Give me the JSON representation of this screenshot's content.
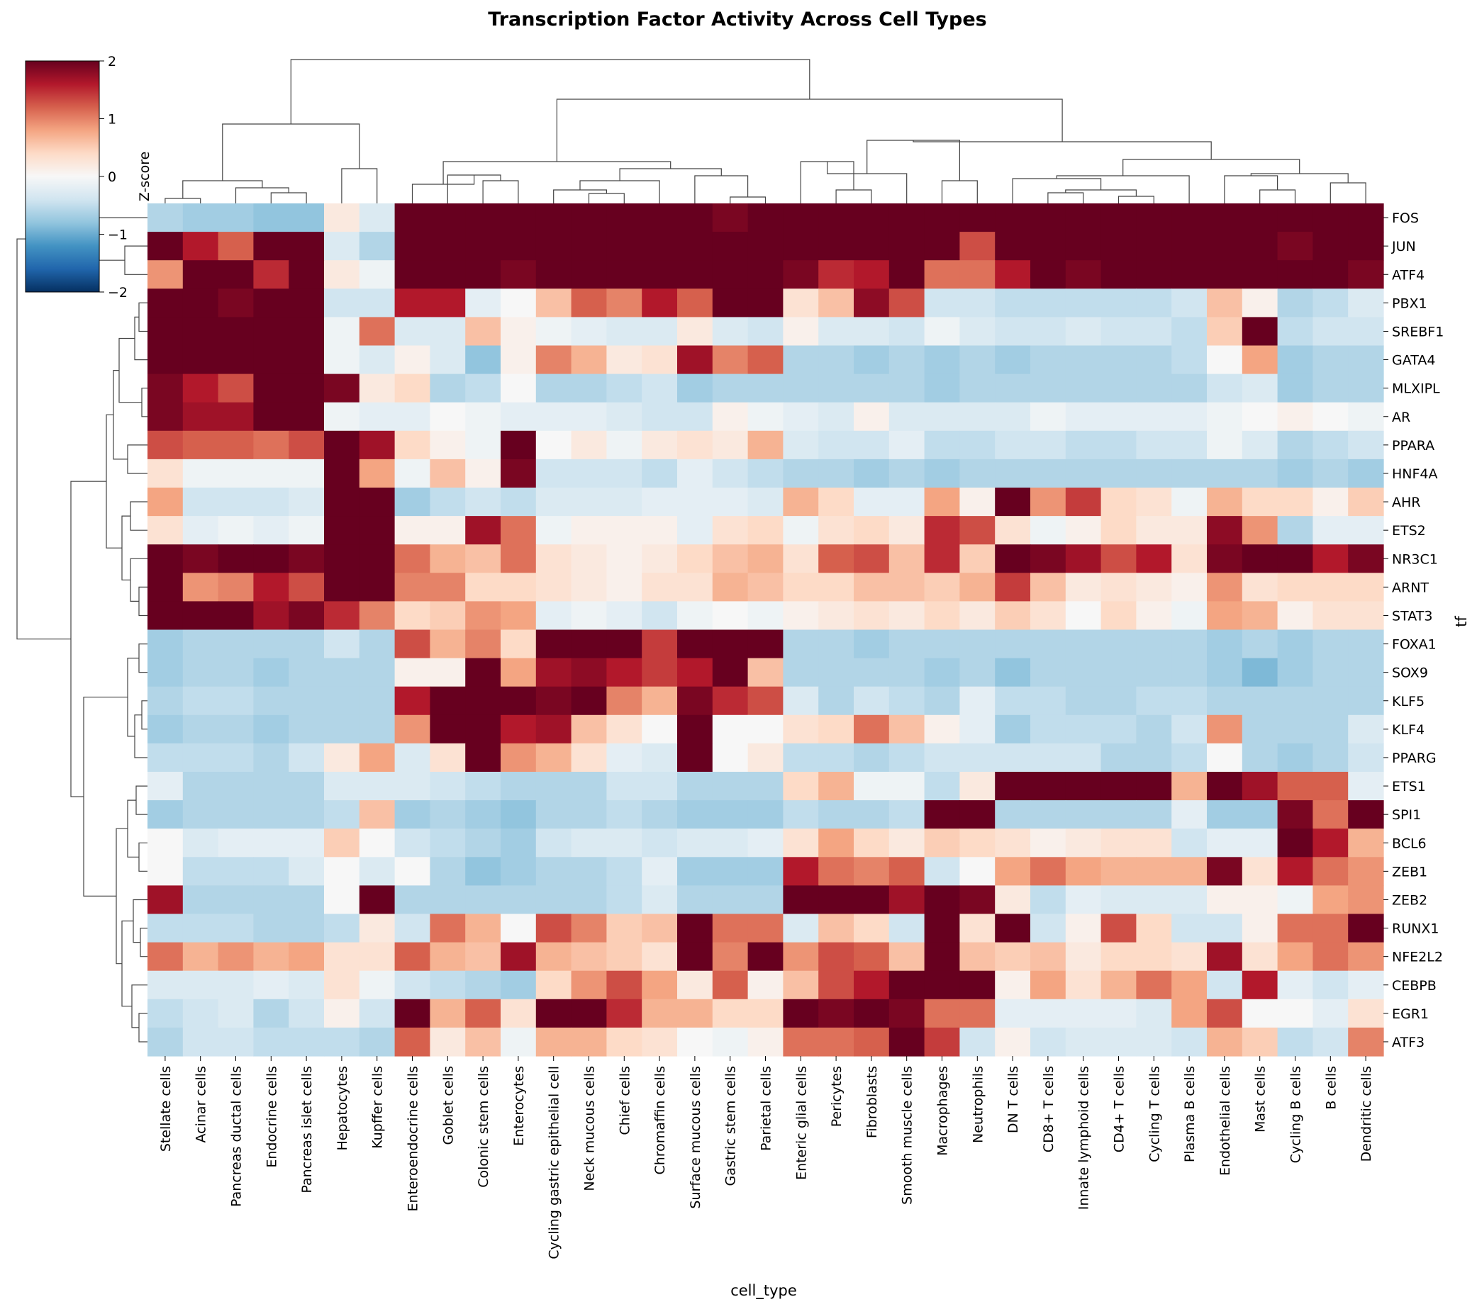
{
  "chart_data": {
    "type": "heatmap",
    "title": "Transcription Factor Activity Across Cell Types",
    "xlabel": "cell_type",
    "ylabel": "tf",
    "colorbar": {
      "label": "Z-score",
      "ticks": [
        2,
        1,
        0,
        -1,
        -2
      ],
      "tick_labels": [
        "2",
        "1",
        "0",
        "−1",
        "−2"
      ],
      "range": [
        -2,
        2
      ],
      "colormap": "RdBu_r",
      "placement": "top-left"
    },
    "clustering": {
      "rows": true,
      "columns": true
    },
    "columns": [
      "Stellate cells",
      "Acinar cells",
      "Pancreas ductal cells",
      "Endocrine cells",
      "Pancreas islet cells",
      "Hepatocytes",
      "Kupffer cells",
      "Enteroendocrine cells",
      "Goblet cells",
      "Colonic stem cells",
      "Enterocytes",
      "Cycling gastric epithelial cell",
      "Neck mucous cells",
      "Chief cells",
      "Chromaffin cells",
      "Surface mucous cells",
      "Gastric stem cells",
      "Parietal cells",
      "Enteric glial cells",
      "Pericytes",
      "Fibroblasts",
      "Smooth muscle cells",
      "Macrophages",
      "Neutrophils",
      "DN T cells",
      "CD8+ T cells",
      "Innate lymphoid cells",
      "CD4+ T cells",
      "Cycling T cells",
      "Plasma B cells",
      "Endothelial cells",
      "Mast cells",
      "Cycling B cells",
      "B cells",
      "Dendritic cells"
    ],
    "rows": [
      "FOS",
      "JUN",
      "ATF4",
      "PBX1",
      "SREBF1",
      "GATA4",
      "MLXIPL",
      "AR",
      "PPARA",
      "HNF4A",
      "AHR",
      "ETS2",
      "NR3C1",
      "ARNT",
      "STAT3",
      "FOXA1",
      "SOX9",
      "KLF5",
      "KLF4",
      "PPARG",
      "ETS1",
      "SPI1",
      "BCL6",
      "ZEB1",
      "ZEB2",
      "RUNX1",
      "NFE2L2",
      "CEBPB",
      "EGR1",
      "ATF3"
    ],
    "values": [
      [
        -0.6,
        -0.7,
        -0.7,
        -0.8,
        -0.8,
        0.2,
        -0.3,
        2,
        2,
        2,
        2,
        2,
        2,
        2,
        2,
        2,
        1.9,
        2,
        2,
        2,
        2,
        2,
        2,
        2,
        2,
        2,
        2,
        2,
        2,
        2,
        2,
        2,
        2,
        2,
        2
      ],
      [
        2,
        1.6,
        1.2,
        2,
        2,
        -0.3,
        -0.6,
        2,
        2,
        2,
        2,
        2,
        2,
        2,
        2,
        2,
        2,
        2,
        2,
        2,
        2,
        2,
        2,
        1.3,
        2,
        2,
        2,
        2,
        2,
        2,
        2,
        2,
        1.9,
        2,
        2
      ],
      [
        0.9,
        2,
        2,
        1.5,
        2,
        0.2,
        -0.1,
        2,
        2,
        2,
        1.9,
        2,
        2,
        2,
        2,
        2,
        2,
        2,
        1.9,
        1.5,
        1.6,
        2,
        1.1,
        1.1,
        1.6,
        2,
        1.9,
        2,
        2,
        2,
        2,
        2,
        2,
        2,
        1.9
      ],
      [
        2,
        2,
        1.9,
        2,
        2,
        -0.4,
        -0.4,
        1.6,
        1.6,
        -0.2,
        0.0,
        0.6,
        1.2,
        1.0,
        1.6,
        1.2,
        2,
        2,
        0.3,
        0.6,
        1.8,
        1.3,
        -0.4,
        -0.4,
        -0.5,
        -0.5,
        -0.5,
        -0.5,
        -0.5,
        -0.4,
        0.6,
        0.1,
        -0.6,
        -0.5,
        -0.3
      ],
      [
        2,
        2,
        2,
        2,
        2,
        -0.1,
        1.1,
        -0.3,
        -0.3,
        0.6,
        0.1,
        -0.1,
        -0.2,
        -0.3,
        -0.3,
        0.2,
        -0.3,
        -0.4,
        0.1,
        -0.3,
        -0.3,
        -0.4,
        -0.1,
        -0.3,
        -0.4,
        -0.4,
        -0.3,
        -0.4,
        -0.4,
        -0.5,
        0.5,
        2,
        -0.5,
        -0.4,
        -0.4
      ],
      [
        2,
        2,
        2,
        2,
        2,
        -0.1,
        -0.3,
        0.1,
        -0.3,
        -0.8,
        0.1,
        1.0,
        0.7,
        0.2,
        0.3,
        1.7,
        1.0,
        1.2,
        -0.6,
        -0.6,
        -0.7,
        -0.6,
        -0.7,
        -0.6,
        -0.7,
        -0.6,
        -0.6,
        -0.6,
        -0.6,
        -0.5,
        0.0,
        0.8,
        -0.7,
        -0.6,
        -0.6
      ],
      [
        1.9,
        1.6,
        1.3,
        2,
        2,
        1.9,
        0.2,
        0.4,
        -0.6,
        -0.5,
        0.0,
        -0.6,
        -0.6,
        -0.5,
        -0.4,
        -0.7,
        -0.6,
        -0.6,
        -0.6,
        -0.6,
        -0.6,
        -0.6,
        -0.7,
        -0.6,
        -0.6,
        -0.6,
        -0.6,
        -0.6,
        -0.6,
        -0.6,
        -0.4,
        -0.3,
        -0.7,
        -0.6,
        -0.6
      ],
      [
        1.9,
        1.7,
        1.7,
        2,
        2,
        -0.1,
        -0.2,
        -0.2,
        0.0,
        -0.1,
        -0.2,
        -0.2,
        -0.2,
        -0.3,
        -0.4,
        -0.4,
        0.1,
        -0.1,
        -0.2,
        -0.3,
        0.1,
        -0.3,
        -0.3,
        -0.3,
        -0.3,
        -0.1,
        -0.2,
        -0.2,
        -0.2,
        -0.2,
        -0.1,
        0.0,
        0.1,
        0.0,
        -0.1
      ],
      [
        1.3,
        1.2,
        1.2,
        1.1,
        1.3,
        2,
        1.7,
        0.4,
        0.1,
        -0.1,
        2,
        0.0,
        0.2,
        -0.1,
        0.2,
        0.3,
        0.2,
        0.7,
        -0.3,
        -0.4,
        -0.4,
        -0.2,
        -0.5,
        -0.5,
        -0.4,
        -0.4,
        -0.5,
        -0.5,
        -0.4,
        -0.4,
        -0.1,
        -0.3,
        -0.6,
        -0.5,
        -0.4
      ],
      [
        0.3,
        -0.1,
        -0.1,
        -0.1,
        -0.1,
        2,
        0.8,
        -0.1,
        0.6,
        0.1,
        1.9,
        -0.4,
        -0.4,
        -0.4,
        -0.5,
        -0.2,
        -0.4,
        -0.5,
        -0.6,
        -0.6,
        -0.7,
        -0.6,
        -0.7,
        -0.6,
        -0.6,
        -0.6,
        -0.6,
        -0.6,
        -0.6,
        -0.6,
        -0.6,
        -0.6,
        -0.7,
        -0.6,
        -0.7
      ],
      [
        0.8,
        -0.4,
        -0.4,
        -0.4,
        -0.3,
        2,
        2,
        -0.7,
        -0.5,
        -0.4,
        -0.5,
        -0.3,
        -0.3,
        -0.3,
        -0.2,
        -0.2,
        -0.2,
        -0.3,
        0.7,
        0.4,
        -0.2,
        -0.2,
        0.8,
        0.1,
        2,
        0.9,
        1.4,
        0.4,
        0.3,
        -0.1,
        0.7,
        0.4,
        0.4,
        0.1,
        0.5
      ],
      [
        0.3,
        -0.2,
        -0.1,
        -0.2,
        -0.1,
        2,
        2,
        0.1,
        0.1,
        1.7,
        1.1,
        -0.1,
        0.1,
        0.1,
        0.1,
        -0.2,
        0.3,
        0.4,
        -0.1,
        0.3,
        0.4,
        0.2,
        1.5,
        1.3,
        0.3,
        -0.1,
        0.1,
        0.4,
        0.2,
        0.2,
        1.8,
        0.9,
        -0.6,
        -0.2,
        -0.2
      ],
      [
        2,
        1.9,
        2,
        2,
        1.9,
        2,
        2,
        1.1,
        0.7,
        0.6,
        1.1,
        0.3,
        0.2,
        0.1,
        0.2,
        0.4,
        0.6,
        0.7,
        0.3,
        1.2,
        1.3,
        0.6,
        1.5,
        0.5,
        2,
        1.9,
        1.7,
        1.3,
        1.6,
        0.3,
        1.9,
        2,
        2,
        1.6,
        1.9
      ],
      [
        2,
        0.9,
        1.0,
        1.6,
        1.3,
        2,
        2,
        1.0,
        1.0,
        0.4,
        0.4,
        0.3,
        0.2,
        0.1,
        0.3,
        0.3,
        0.7,
        0.6,
        0.4,
        0.4,
        0.6,
        0.6,
        0.5,
        0.7,
        1.4,
        0.6,
        0.2,
        0.3,
        0.2,
        0.1,
        0.9,
        0.3,
        0.4,
        0.4,
        0.4
      ],
      [
        2,
        2,
        2,
        1.7,
        1.9,
        1.5,
        1.0,
        0.4,
        0.5,
        0.9,
        0.8,
        -0.2,
        -0.1,
        -0.2,
        -0.4,
        -0.1,
        0.0,
        -0.1,
        0.1,
        0.2,
        0.3,
        0.2,
        0.4,
        0.2,
        0.5,
        0.3,
        0.0,
        0.4,
        0.1,
        -0.1,
        0.8,
        0.7,
        0.1,
        0.3,
        0.3
      ],
      [
        -0.7,
        -0.6,
        -0.6,
        -0.6,
        -0.6,
        -0.4,
        -0.6,
        1.3,
        0.7,
        1.0,
        0.4,
        2,
        2,
        2,
        1.4,
        2,
        2,
        2,
        -0.6,
        -0.6,
        -0.7,
        -0.6,
        -0.6,
        -0.6,
        -0.6,
        -0.6,
        -0.6,
        -0.6,
        -0.6,
        -0.6,
        -0.7,
        -0.6,
        -0.7,
        -0.6,
        -0.6
      ],
      [
        -0.7,
        -0.6,
        -0.6,
        -0.7,
        -0.6,
        -0.6,
        -0.6,
        0.1,
        0.1,
        2,
        0.8,
        1.7,
        1.8,
        1.6,
        1.4,
        1.6,
        2,
        0.6,
        -0.6,
        -0.6,
        -0.6,
        -0.6,
        -0.7,
        -0.6,
        -0.8,
        -0.6,
        -0.6,
        -0.6,
        -0.6,
        -0.6,
        -0.7,
        -0.9,
        -0.7,
        -0.6,
        -0.6
      ],
      [
        -0.6,
        -0.5,
        -0.5,
        -0.6,
        -0.6,
        -0.6,
        -0.6,
        1.6,
        2,
        2,
        2,
        1.9,
        2,
        1.0,
        0.7,
        1.9,
        1.5,
        1.3,
        -0.3,
        -0.6,
        -0.4,
        -0.5,
        -0.6,
        -0.2,
        -0.5,
        -0.5,
        -0.6,
        -0.6,
        -0.5,
        -0.5,
        -0.6,
        -0.6,
        -0.6,
        -0.6,
        -0.6
      ],
      [
        -0.7,
        -0.6,
        -0.6,
        -0.7,
        -0.6,
        -0.6,
        -0.6,
        0.9,
        2,
        2,
        1.6,
        1.7,
        0.6,
        0.3,
        0.0,
        2,
        0.0,
        0.0,
        0.3,
        0.4,
        1.1,
        0.6,
        0.1,
        -0.2,
        -0.7,
        -0.5,
        -0.5,
        -0.5,
        -0.6,
        -0.4,
        0.9,
        -0.6,
        -0.6,
        -0.6,
        -0.3
      ],
      [
        -0.5,
        -0.5,
        -0.5,
        -0.6,
        -0.4,
        0.2,
        0.8,
        -0.3,
        0.3,
        2,
        0.9,
        0.7,
        0.3,
        -0.2,
        -0.3,
        2,
        0.0,
        0.2,
        -0.5,
        -0.5,
        -0.6,
        -0.5,
        -0.4,
        -0.4,
        -0.4,
        -0.4,
        -0.4,
        -0.6,
        -0.6,
        -0.5,
        0.0,
        -0.6,
        -0.7,
        -0.6,
        -0.4
      ],
      [
        -0.2,
        -0.6,
        -0.6,
        -0.6,
        -0.6,
        -0.3,
        -0.3,
        -0.3,
        -0.4,
        -0.5,
        -0.6,
        -0.6,
        -0.6,
        -0.4,
        -0.4,
        -0.6,
        -0.6,
        -0.6,
        0.4,
        0.7,
        -0.1,
        -0.1,
        -0.5,
        0.2,
        2,
        2,
        2,
        2,
        2,
        0.7,
        2,
        1.7,
        1.2,
        1.2,
        -0.2
      ],
      [
        -0.7,
        -0.6,
        -0.6,
        -0.6,
        -0.6,
        -0.5,
        0.6,
        -0.7,
        -0.6,
        -0.7,
        -0.8,
        -0.6,
        -0.6,
        -0.5,
        -0.6,
        -0.7,
        -0.7,
        -0.7,
        -0.5,
        -0.6,
        -0.6,
        -0.5,
        2,
        2,
        -0.6,
        -0.6,
        -0.6,
        -0.6,
        -0.6,
        -0.2,
        -0.7,
        -0.7,
        1.9,
        1.1,
        2
      ],
      [
        0.0,
        -0.3,
        -0.2,
        -0.2,
        -0.2,
        0.5,
        0.0,
        -0.4,
        -0.5,
        -0.6,
        -0.7,
        -0.4,
        -0.3,
        -0.3,
        -0.4,
        -0.3,
        -0.3,
        -0.2,
        0.3,
        0.8,
        0.4,
        0.2,
        0.5,
        0.4,
        0.3,
        0.1,
        0.2,
        0.3,
        0.3,
        -0.4,
        -0.2,
        -0.2,
        2,
        1.6,
        0.7
      ],
      [
        0.0,
        -0.5,
        -0.5,
        -0.5,
        -0.3,
        0.0,
        -0.3,
        0.0,
        -0.6,
        -0.8,
        -0.7,
        -0.6,
        -0.6,
        -0.5,
        -0.2,
        -0.7,
        -0.7,
        -0.7,
        1.6,
        1.1,
        1.0,
        1.2,
        -0.4,
        0.0,
        0.8,
        1.1,
        0.8,
        0.7,
        0.7,
        0.7,
        1.9,
        0.3,
        1.6,
        1.1,
        0.9
      ],
      [
        1.7,
        -0.6,
        -0.6,
        -0.6,
        -0.6,
        0.0,
        2,
        -0.6,
        -0.6,
        -0.6,
        -0.6,
        -0.6,
        -0.6,
        -0.5,
        -0.3,
        -0.6,
        -0.6,
        -0.6,
        2,
        2,
        2,
        1.7,
        2,
        1.9,
        0.2,
        -0.5,
        -0.2,
        -0.3,
        -0.3,
        -0.3,
        0.1,
        0.1,
        -0.1,
        0.8,
        0.9
      ],
      [
        -0.5,
        -0.5,
        -0.5,
        -0.6,
        -0.6,
        -0.5,
        0.2,
        -0.4,
        1.1,
        0.7,
        0.0,
        1.3,
        1.0,
        0.5,
        0.6,
        2,
        1.1,
        1.1,
        -0.3,
        0.6,
        0.4,
        -0.4,
        2,
        0.3,
        2,
        -0.4,
        0.1,
        1.3,
        0.4,
        -0.4,
        -0.4,
        0.1,
        1.1,
        1.1,
        2
      ],
      [
        1.1,
        0.7,
        0.9,
        0.7,
        0.8,
        0.3,
        0.3,
        1.2,
        0.7,
        0.6,
        1.7,
        0.7,
        0.6,
        0.5,
        0.3,
        2,
        1.0,
        2,
        0.9,
        1.3,
        1.2,
        0.6,
        2,
        0.6,
        0.5,
        0.6,
        0.2,
        0.4,
        0.4,
        0.3,
        1.7,
        0.3,
        0.8,
        1.1,
        0.9
      ],
      [
        -0.3,
        -0.3,
        -0.3,
        -0.2,
        -0.3,
        0.3,
        -0.1,
        -0.4,
        -0.5,
        -0.6,
        -0.7,
        0.4,
        0.9,
        1.3,
        0.8,
        0.2,
        1.2,
        0.1,
        0.6,
        1.3,
        1.6,
        2,
        2,
        2,
        0.1,
        0.8,
        0.3,
        0.7,
        1.1,
        0.8,
        -0.4,
        1.6,
        -0.2,
        -0.4,
        -0.2
      ],
      [
        -0.5,
        -0.4,
        -0.3,
        -0.6,
        -0.4,
        0.1,
        -0.4,
        2,
        0.7,
        1.2,
        0.3,
        2,
        2,
        1.5,
        0.7,
        0.7,
        0.4,
        0.4,
        2,
        1.9,
        2,
        1.9,
        1.1,
        1.1,
        -0.2,
        -0.2,
        -0.2,
        -0.2,
        -0.3,
        0.8,
        1.3,
        0.0,
        0.0,
        -0.2,
        0.3
      ],
      [
        -0.6,
        -0.4,
        -0.4,
        -0.5,
        -0.5,
        -0.5,
        -0.6,
        1.2,
        0.2,
        0.6,
        -0.1,
        0.7,
        0.7,
        0.4,
        0.3,
        0.0,
        -0.1,
        0.1,
        1.1,
        1.1,
        1.2,
        2,
        1.4,
        -0.4,
        0.1,
        -0.4,
        -0.3,
        -0.3,
        -0.3,
        -0.4,
        0.7,
        0.5,
        -0.5,
        -0.4,
        1.0
      ]
    ]
  }
}
